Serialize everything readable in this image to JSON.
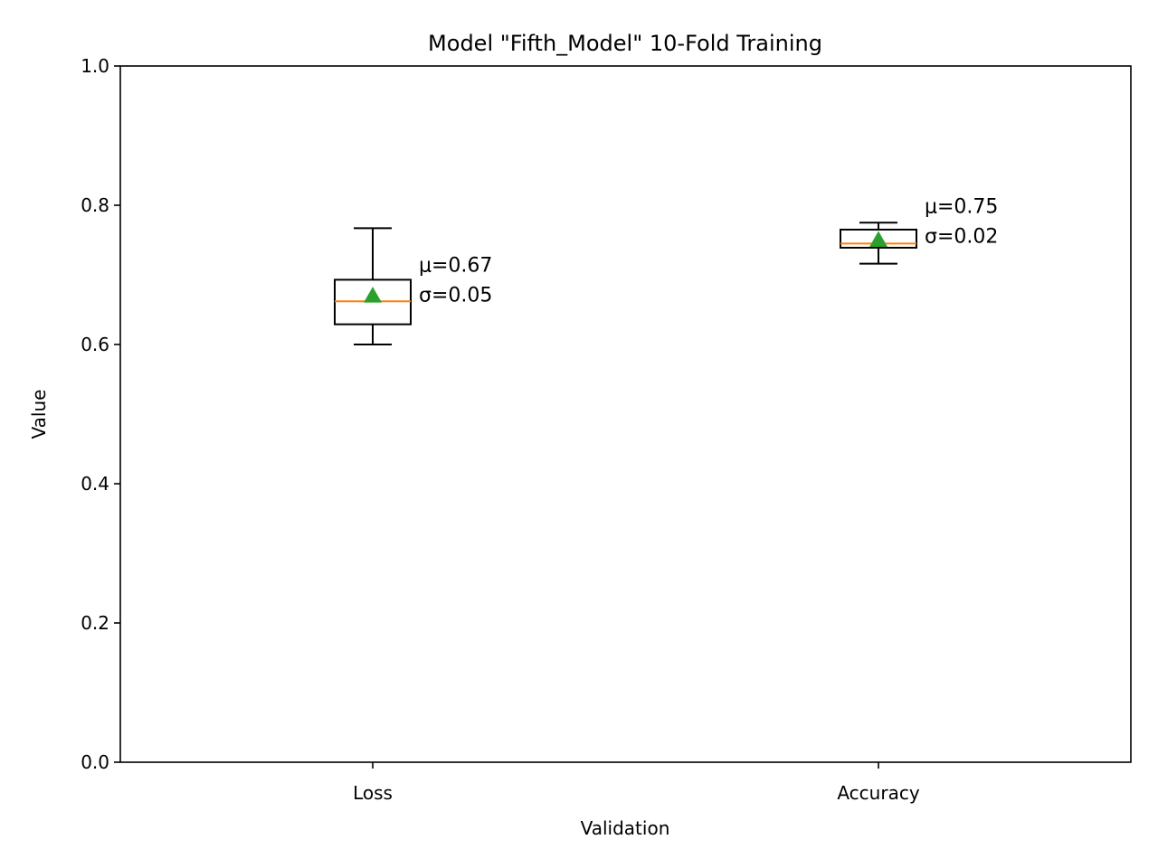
{
  "chart_data": {
    "type": "box",
    "title": "Model \"Fifth_Model\" 10-Fold Training",
    "xlabel": "Validation",
    "ylabel": "Value",
    "ylim": [
      0.0,
      1.0
    ],
    "yticks": [
      {
        "value": 0.0,
        "label": "0.0"
      },
      {
        "value": 0.2,
        "label": "0.2"
      },
      {
        "value": 0.4,
        "label": "0.4"
      },
      {
        "value": 0.6,
        "label": "0.6"
      },
      {
        "value": 0.8,
        "label": "0.8"
      },
      {
        "value": 1.0,
        "label": "1.0"
      }
    ],
    "categories": [
      "Loss",
      "Accuracy"
    ],
    "boxes": [
      {
        "category": "Loss",
        "whisker_low": 0.6,
        "q1": 0.629,
        "median": 0.662,
        "q3": 0.693,
        "whisker_high": 0.767,
        "mean": 0.67,
        "annotation": [
          "μ=0.67",
          "σ=0.05"
        ]
      },
      {
        "category": "Accuracy",
        "whisker_low": 0.716,
        "q1": 0.739,
        "median": 0.745,
        "q3": 0.765,
        "whisker_high": 0.775,
        "mean": 0.75,
        "annotation": [
          "μ=0.75",
          "σ=0.02"
        ]
      }
    ],
    "colors": {
      "box": "#000000",
      "median": "#ff7f0e",
      "mean_marker": "#2ca02c"
    },
    "grid": false,
    "legend": "none"
  }
}
